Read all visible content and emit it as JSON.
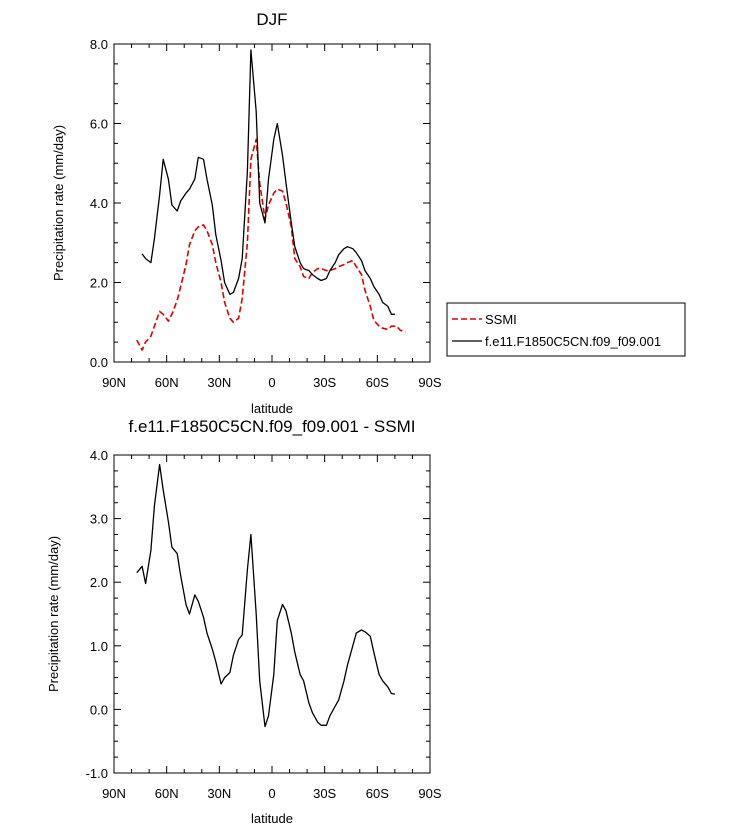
{
  "chart_data": [
    {
      "type": "line",
      "title": "DJF",
      "xlabel": "latitude",
      "ylabel": "Precipitation rate (mm/day)",
      "xlim": [
        90,
        -90
      ],
      "ylim": [
        0,
        8
      ],
      "xticks": [
        90,
        60,
        30,
        0,
        -30,
        -60,
        -90
      ],
      "xtick_labels": [
        "90N",
        "60N",
        "30N",
        "0",
        "30S",
        "60S",
        "90S"
      ],
      "yticks": [
        0,
        2,
        4,
        6,
        8
      ],
      "ytick_labels": [
        "0.0",
        "2.0",
        "4.0",
        "6.0",
        "8.0"
      ],
      "legend_position": "right",
      "series": [
        {
          "name": "SSMI",
          "color": "#e00000",
          "dash": "dashed",
          "x": [
            77,
            74,
            72,
            69,
            67,
            64,
            62,
            59,
            57,
            54,
            52,
            49,
            47,
            44,
            42,
            39,
            37,
            34,
            32,
            29,
            27,
            24,
            22,
            19,
            17,
            14,
            12,
            9,
            7,
            4,
            2,
            -1,
            -3,
            -6,
            -8,
            -11,
            -13,
            -16,
            -18,
            -21,
            -23,
            -26,
            -28,
            -31,
            -33,
            -36,
            -38,
            -41,
            -43,
            -46,
            -48,
            -51,
            -53,
            -56,
            -58,
            -61,
            -63,
            -66,
            -68,
            -71,
            -73,
            -76
          ],
          "y": [
            0.55,
            0.3,
            0.5,
            0.65,
            0.9,
            1.27,
            1.2,
            1.03,
            1.2,
            1.55,
            1.9,
            2.45,
            2.95,
            3.3,
            3.4,
            3.45,
            3.3,
            2.95,
            2.5,
            2.0,
            1.5,
            1.1,
            1.0,
            1.1,
            1.6,
            3.0,
            5.1,
            5.6,
            4.5,
            3.6,
            3.95,
            4.25,
            4.35,
            4.3,
            4.0,
            3.4,
            2.6,
            2.4,
            2.15,
            2.1,
            2.25,
            2.35,
            2.35,
            2.3,
            2.3,
            2.35,
            2.4,
            2.45,
            2.5,
            2.55,
            2.4,
            2.2,
            1.8,
            1.4,
            1.05,
            0.9,
            0.85,
            0.82,
            0.9,
            0.9,
            0.8,
            0.75
          ]
        },
        {
          "name": "f.e11.F1850C5CN.f09_f09.001",
          "color": "#000000",
          "dash": "solid",
          "x": [
            74,
            72,
            69,
            67,
            64,
            62,
            59,
            57,
            54,
            52,
            49,
            47,
            44,
            42,
            39,
            37,
            34,
            32,
            29,
            27,
            24,
            22,
            19,
            17,
            14,
            12,
            9,
            7,
            4,
            2,
            -1,
            -3,
            -6,
            -8,
            -11,
            -13,
            -16,
            -18,
            -21,
            -23,
            -26,
            -28,
            -31,
            -33,
            -36,
            -38,
            -41,
            -43,
            -46,
            -48,
            -51,
            -53,
            -56,
            -58,
            -61,
            -63,
            -66,
            -68,
            -70
          ],
          "y": [
            2.72,
            2.6,
            2.5,
            3.1,
            4.2,
            5.1,
            4.6,
            3.95,
            3.8,
            4.05,
            4.25,
            4.35,
            4.6,
            5.15,
            5.1,
            4.6,
            3.95,
            3.2,
            2.55,
            2.0,
            1.7,
            1.75,
            2.1,
            2.6,
            4.8,
            7.85,
            6.3,
            4.0,
            3.5,
            4.6,
            5.6,
            6.0,
            5.2,
            4.5,
            3.5,
            2.9,
            2.5,
            2.35,
            2.3,
            2.2,
            2.1,
            2.05,
            2.1,
            2.3,
            2.5,
            2.7,
            2.85,
            2.9,
            2.85,
            2.75,
            2.55,
            2.3,
            2.1,
            1.9,
            1.7,
            1.5,
            1.4,
            1.2,
            1.2
          ]
        }
      ]
    },
    {
      "type": "line",
      "title": "f.e11.F1850C5CN.f09_f09.001 - SSMI",
      "xlabel": "latitude",
      "ylabel": "Precipitation rate (mm/day)",
      "xlim": [
        90,
        -90
      ],
      "ylim": [
        -1,
        4
      ],
      "xticks": [
        90,
        60,
        30,
        0,
        -30,
        -60,
        -90
      ],
      "xtick_labels": [
        "90N",
        "60N",
        "30N",
        "0",
        "30S",
        "60S",
        "90S"
      ],
      "yticks": [
        -1,
        0,
        1,
        2,
        3,
        4
      ],
      "ytick_labels": [
        "-1.0",
        "0.0",
        "1.0",
        "2.0",
        "3.0",
        "4.0"
      ],
      "series": [
        {
          "color": "#000000",
          "dash": "solid",
          "x": [
            77,
            74,
            72,
            69,
            67,
            64,
            62,
            59,
            57,
            54,
            52,
            49,
            47,
            44,
            42,
            39,
            37,
            34,
            32,
            29,
            27,
            24,
            22,
            19,
            17,
            14,
            12,
            9,
            7,
            4,
            2,
            -1,
            -3,
            -6,
            -8,
            -11,
            -13,
            -16,
            -18,
            -21,
            -23,
            -26,
            -28,
            -31,
            -33,
            -36,
            -38,
            -41,
            -43,
            -46,
            -48,
            -51,
            -53,
            -56,
            -58,
            -61,
            -63,
            -66,
            -68,
            -70
          ],
          "y": [
            2.15,
            2.25,
            1.98,
            2.5,
            3.2,
            3.85,
            3.45,
            2.95,
            2.55,
            2.45,
            2.1,
            1.65,
            1.5,
            1.8,
            1.7,
            1.45,
            1.2,
            0.95,
            0.75,
            0.4,
            0.5,
            0.58,
            0.85,
            1.1,
            1.17,
            2.2,
            2.75,
            1.5,
            0.45,
            -0.27,
            -0.1,
            0.55,
            1.4,
            1.65,
            1.55,
            1.2,
            0.9,
            0.55,
            0.45,
            0.1,
            -0.05,
            -0.2,
            -0.25,
            -0.25,
            -0.1,
            0.05,
            0.15,
            0.45,
            0.7,
            1.0,
            1.2,
            1.25,
            1.22,
            1.15,
            0.9,
            0.55,
            0.45,
            0.35,
            0.25,
            0.24
          ]
        }
      ]
    }
  ]
}
